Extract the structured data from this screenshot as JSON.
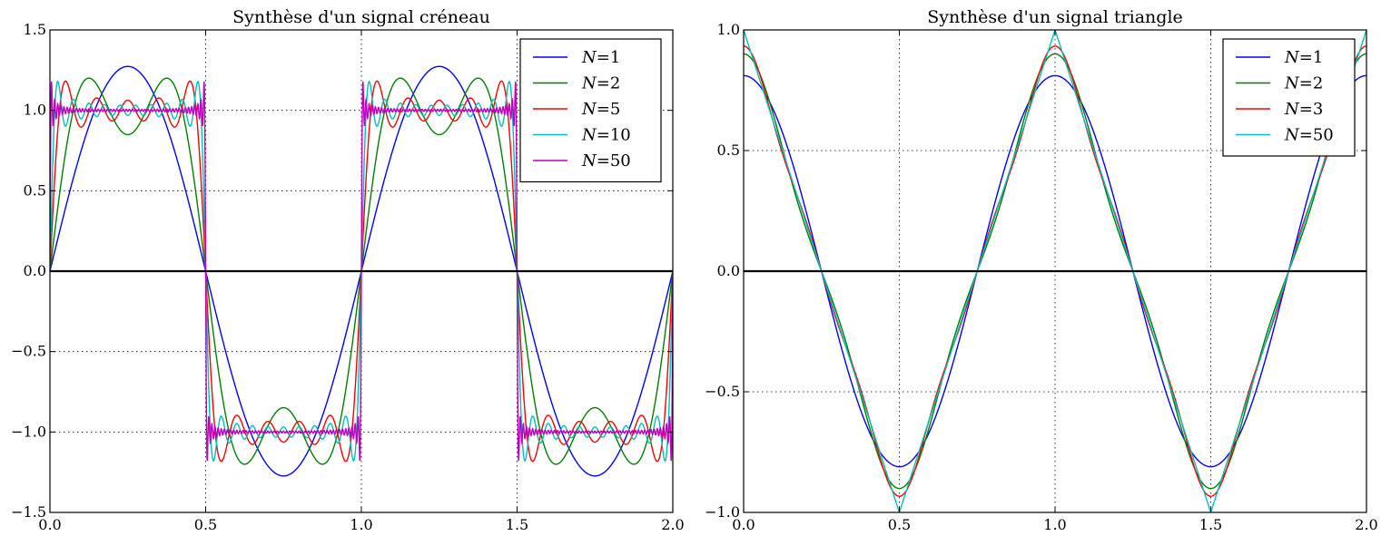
{
  "chart_data": [
    {
      "type": "line",
      "title": "Synthèse d'un signal créneau",
      "signal": "square",
      "xlim": [
        0.0,
        2.0
      ],
      "ylim": [
        -1.5,
        1.5
      ],
      "xticks": [
        0.0,
        0.5,
        1.0,
        1.5,
        2.0
      ],
      "yticks": [
        -1.5,
        -1.0,
        -0.5,
        0.0,
        0.5,
        1.0,
        1.5
      ],
      "xtick_labels": [
        "0.0",
        "0.5",
        "1.0",
        "1.5",
        "2.0"
      ],
      "ytick_labels": [
        "−1.5",
        "−1.0",
        "−0.5",
        "0.0",
        "0.5",
        "1.0",
        "1.5"
      ],
      "grid": true,
      "legend_position": "top-right",
      "series": [
        {
          "name": "N=1",
          "label_var": "N",
          "label_val": "1",
          "harmonics": 1,
          "color": "#0000ff"
        },
        {
          "name": "N=2",
          "label_var": "N",
          "label_val": "2",
          "harmonics": 2,
          "color": "#008000"
        },
        {
          "name": "N=5",
          "label_var": "N",
          "label_val": "5",
          "harmonics": 5,
          "color": "#ff0000"
        },
        {
          "name": "N=10",
          "label_var": "N",
          "label_val": "10",
          "harmonics": 10,
          "color": "#00bfbf"
        },
        {
          "name": "N=50",
          "label_var": "N",
          "label_val": "50",
          "harmonics": 50,
          "color": "#bf00bf"
        }
      ]
    },
    {
      "type": "line",
      "title": "Synthèse d'un signal triangle",
      "signal": "triangle",
      "xlim": [
        0.0,
        2.0
      ],
      "ylim": [
        -1.0,
        1.0
      ],
      "xticks": [
        0.0,
        0.5,
        1.0,
        1.5,
        2.0
      ],
      "yticks": [
        -1.0,
        -0.5,
        0.0,
        0.5,
        1.0
      ],
      "xtick_labels": [
        "0.0",
        "0.5",
        "1.0",
        "1.5",
        "2.0"
      ],
      "ytick_labels": [
        "−1.0",
        "−0.5",
        "0.0",
        "0.5",
        "1.0"
      ],
      "grid": true,
      "legend_position": "top-right",
      "series": [
        {
          "name": "N=1",
          "label_var": "N",
          "label_val": "1",
          "harmonics": 1,
          "color": "#0000ff"
        },
        {
          "name": "N=2",
          "label_var": "N",
          "label_val": "2",
          "harmonics": 2,
          "color": "#008000"
        },
        {
          "name": "N=3",
          "label_var": "N",
          "label_val": "3",
          "harmonics": 3,
          "color": "#ff0000"
        },
        {
          "name": "N=50",
          "label_var": "N",
          "label_val": "50",
          "harmonics": 50,
          "color": "#00bfbf"
        }
      ]
    }
  ]
}
